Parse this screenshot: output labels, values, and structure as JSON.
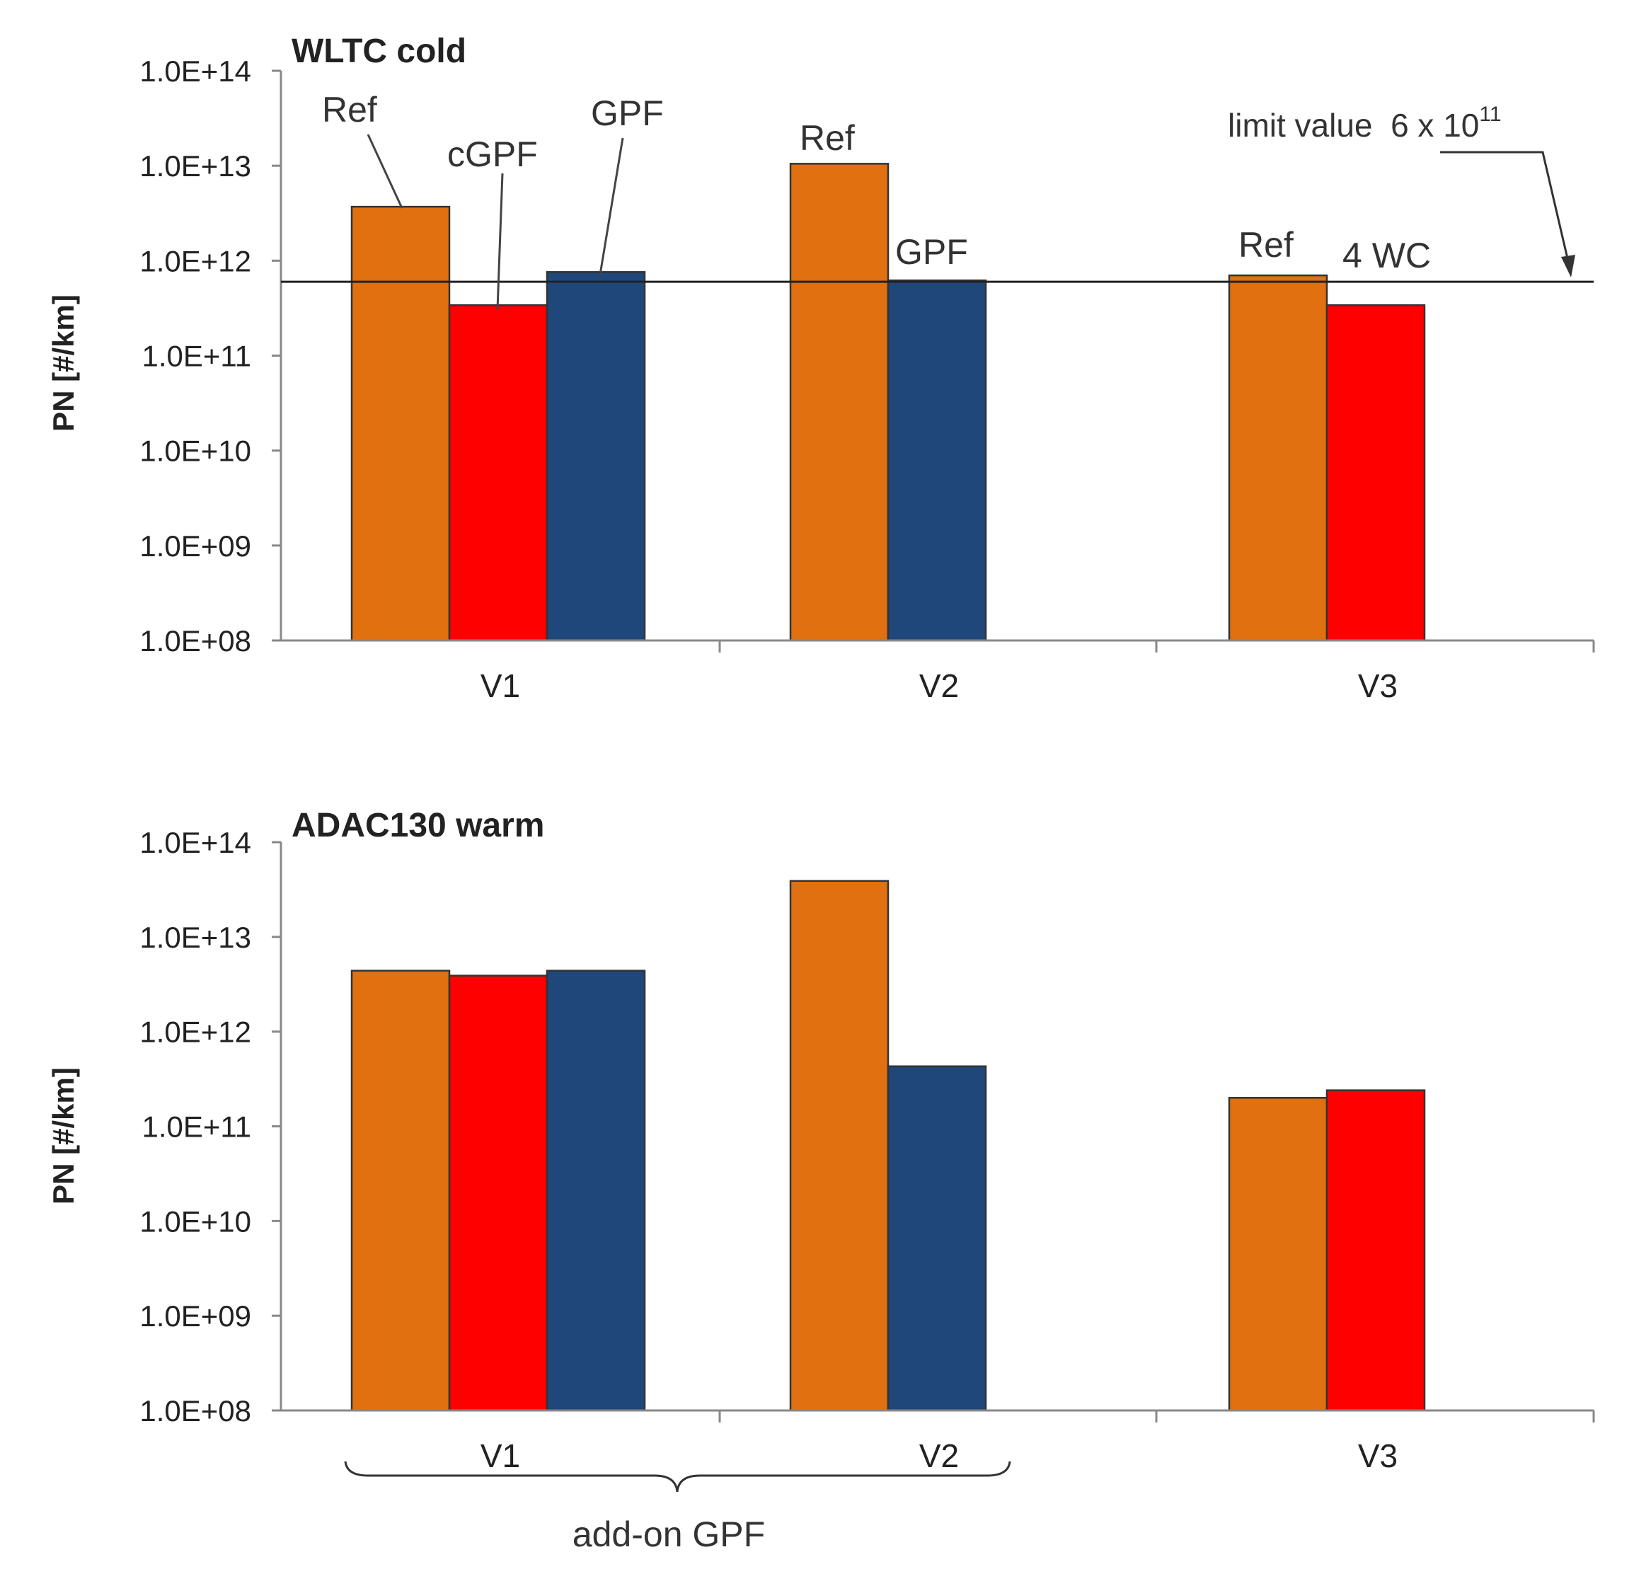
{
  "chart_data": [
    {
      "type": "bar",
      "title": "WLTC cold",
      "ylabel": "PN [#/km]",
      "yscale": "log",
      "ylim": [
        100000000.0,
        100000000000000.0
      ],
      "yticks": [
        {
          "value": 100000000.0,
          "label": "1.0E+08"
        },
        {
          "value": 1000000000.0,
          "label": "1.0E+09"
        },
        {
          "value": 10000000000.0,
          "label": "1.0E+10"
        },
        {
          "value": 100000000000.0,
          "label": "1.0E+11"
        },
        {
          "value": 1000000000000.0,
          "label": "1.0E+12"
        },
        {
          "value": 10000000000000.0,
          "label": "1.0E+13"
        },
        {
          "value": 100000000000000.0,
          "label": "1.0E+14"
        }
      ],
      "categories": [
        "V1",
        "V2",
        "V3"
      ],
      "colors": {
        "Ref": "#e07010",
        "red": "#ff0000",
        "GPF": "#1f477a"
      },
      "groups": [
        {
          "category": "V1",
          "bars": [
            {
              "color": "Ref",
              "value": 3700000000000.0
            },
            {
              "color": "red",
              "value": 340000000000.0
            },
            {
              "color": "GPF",
              "value": 760000000000.0
            }
          ]
        },
        {
          "category": "V2",
          "bars": [
            {
              "color": "Ref",
              "value": 10500000000000.0
            },
            {
              "color": "GPF",
              "value": 620000000000.0
            }
          ]
        },
        {
          "category": "V3",
          "bars": [
            {
              "color": "Ref",
              "value": 700000000000.0
            },
            {
              "color": "red",
              "value": 340000000000.0
            }
          ]
        }
      ],
      "reference_line": {
        "value": 600000000000.0
      },
      "annotations": {
        "v1_ref": "Ref",
        "v1_cgpf": "cGPF",
        "v1_gpf": "GPF",
        "v2_ref": "Ref",
        "v2_gpf": "GPF",
        "v3_ref": "Ref",
        "v3_4wc": "4 WC",
        "limit_text": "limit value  6 x 10",
        "limit_exp": "11"
      }
    },
    {
      "type": "bar",
      "title": "ADAC130 warm",
      "ylabel": "PN [#/km]",
      "yscale": "log",
      "ylim": [
        100000000.0,
        100000000000000.0
      ],
      "yticks": [
        {
          "value": 100000000.0,
          "label": "1.0E+08"
        },
        {
          "value": 1000000000.0,
          "label": "1.0E+09"
        },
        {
          "value": 10000000000.0,
          "label": "1.0E+10"
        },
        {
          "value": 100000000000.0,
          "label": "1.0E+11"
        },
        {
          "value": 1000000000000.0,
          "label": "1.0E+12"
        },
        {
          "value": 10000000000000.0,
          "label": "1.0E+13"
        },
        {
          "value": 100000000000000.0,
          "label": "1.0E+14"
        }
      ],
      "categories": [
        "V1",
        "V2",
        "V3"
      ],
      "colors": {
        "Ref": "#e07010",
        "red": "#ff0000",
        "GPF": "#1f477a"
      },
      "groups": [
        {
          "category": "V1",
          "bars": [
            {
              "color": "Ref",
              "value": 4400000000000.0
            },
            {
              "color": "red",
              "value": 3900000000000.0
            },
            {
              "color": "GPF",
              "value": 4400000000000.0
            }
          ]
        },
        {
          "category": "V2",
          "bars": [
            {
              "color": "Ref",
              "value": 39000000000000.0
            },
            {
              "color": "GPF",
              "value": 430000000000.0
            }
          ]
        },
        {
          "category": "V3",
          "bars": [
            {
              "color": "Ref",
              "value": 200000000000.0
            },
            {
              "color": "red",
              "value": 240000000000.0
            }
          ]
        }
      ],
      "brace_label": "add-on GPF"
    }
  ]
}
